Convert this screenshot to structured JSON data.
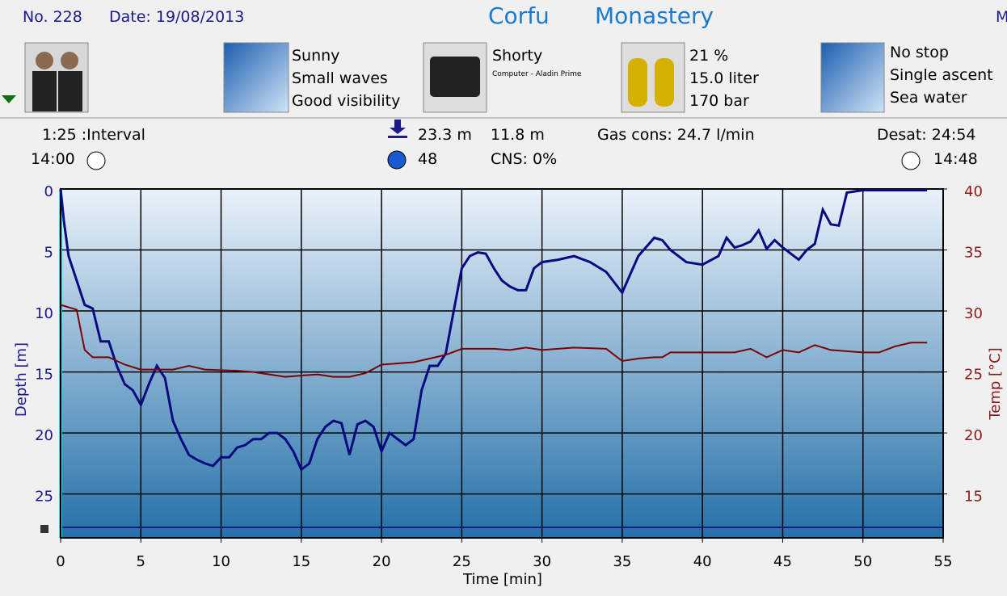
{
  "header": {
    "number": "No. 228",
    "date": "Date: 19/08/2013",
    "location": "Corfu",
    "site": "Monastery",
    "cut": "M"
  },
  "conditions": {
    "weather": "Sunny",
    "waves": "Small waves",
    "visibility": "Good visibility"
  },
  "suit": {
    "name": "Shorty",
    "computer": "Computer - Aladin Prime"
  },
  "gas": {
    "mix": "21 %",
    "volume": "15.0 liter",
    "pressure": "170 bar"
  },
  "dive_type": {
    "deco": "No stop",
    "ascent": "Single ascent",
    "water": "Sea water"
  },
  "stats": {
    "interval": "1:25 :Interval",
    "entry": "14:00",
    "max_depth": "23.3 m",
    "avg_depth": "11.8 m",
    "gas_cons": "Gas cons: 24.7 l/min",
    "desat": "Desat: 24:54",
    "duration": "48",
    "cns": "CNS:  0%",
    "exit": "14:48"
  },
  "chart_data": {
    "type": "line",
    "x_label": "Time [min]",
    "y_label": "Depth [m]",
    "y2_label": "Temp [°C]",
    "xlim": [
      0,
      55
    ],
    "xticks": [
      0,
      5,
      10,
      15,
      20,
      25,
      30,
      35,
      40,
      45,
      50,
      55
    ],
    "ylim": [
      28.6,
      0
    ],
    "yticks": [
      0,
      5,
      10,
      15,
      20,
      25
    ],
    "y2lim": [
      11.4,
      40
    ],
    "y2ticks": [
      40,
      35,
      30,
      25,
      20,
      15
    ],
    "grid": true,
    "series": [
      {
        "color": "#0a0a80",
        "x": [
          0,
          0.2,
          0.5,
          1,
          1.5,
          2,
          2.5,
          3,
          3.5,
          4,
          4.5,
          5,
          5.5,
          6,
          6.5,
          7,
          7.5,
          8,
          8.5,
          9,
          9.5,
          10,
          10.5,
          11,
          11.5,
          12,
          12.5,
          13,
          13.5,
          14,
          14.5,
          15,
          15.5,
          16,
          16.5,
          17,
          17.5,
          18,
          18.5,
          19,
          19.5,
          20,
          20.5,
          21,
          21.5,
          22,
          22.5,
          23,
          23.5,
          24,
          24.5,
          25,
          25.5,
          26,
          26.5,
          27,
          27.5,
          28,
          28.5,
          29,
          29.5,
          30,
          31,
          32,
          33,
          34,
          35,
          35.5,
          36,
          37,
          37.5,
          38,
          39,
          40,
          41,
          41.5,
          42,
          42.5,
          43,
          43.5,
          44,
          44.5,
          45,
          46,
          46.5,
          47,
          47.5,
          48,
          48.5,
          49,
          50,
          52,
          54
        ],
        "values": [
          0,
          2.6,
          5.5,
          7.5,
          9.5,
          9.8,
          12.5,
          12.5,
          14.5,
          16,
          16.5,
          17.7,
          16,
          14.5,
          15.5,
          19,
          20.5,
          21.8,
          22.2,
          22.5,
          22.7,
          22,
          22,
          21.2,
          21,
          20.5,
          20.5,
          20,
          20,
          20.5,
          21.5,
          23,
          22.5,
          20.5,
          19.5,
          19,
          19.2,
          21.8,
          19.3,
          19,
          19.5,
          21.5,
          20,
          20.5,
          21,
          20.5,
          16.5,
          14.5,
          14.5,
          13.5,
          10,
          6.5,
          5.5,
          5.2,
          5.3,
          6.5,
          7.5,
          8,
          8.3,
          8.3,
          6.5,
          6,
          5.8,
          5.5,
          6,
          6.8,
          8.5,
          7,
          5.5,
          4,
          4.2,
          5,
          6,
          6.2,
          5.5,
          4,
          4.8,
          4.6,
          4.3,
          3.4,
          4.9,
          4.2,
          4.8,
          5.8,
          5,
          4.5,
          1.7,
          2.9,
          3,
          0.3,
          0.1,
          0.1,
          0.1
        ]
      },
      {
        "color": "#800000",
        "axis": "y2",
        "x": [
          0,
          1,
          1.5,
          2,
          3,
          4,
          5,
          7,
          8,
          9,
          11,
          12,
          14,
          16,
          17,
          18,
          19,
          20,
          22,
          23,
          24,
          25,
          27,
          28,
          29,
          30,
          32,
          34,
          35,
          36,
          37,
          37.5,
          38,
          40,
          42,
          43,
          44,
          45,
          46,
          47,
          48,
          49,
          50,
          51,
          52,
          53,
          54
        ],
        "values": [
          30.5,
          30.1,
          26.8,
          26.2,
          26.2,
          25.6,
          25.2,
          25.2,
          25.5,
          25.2,
          25.1,
          25,
          24.6,
          24.8,
          24.6,
          24.6,
          24.9,
          25.6,
          25.8,
          26.1,
          26.4,
          26.9,
          26.9,
          26.8,
          27,
          26.8,
          27,
          26.9,
          25.9,
          26.1,
          26.2,
          26.2,
          26.6,
          26.6,
          26.6,
          26.9,
          26.2,
          26.8,
          26.6,
          27.2,
          26.8,
          26.7,
          26.6,
          26.6,
          27.1,
          27.4,
          27.4
        ]
      }
    ]
  }
}
